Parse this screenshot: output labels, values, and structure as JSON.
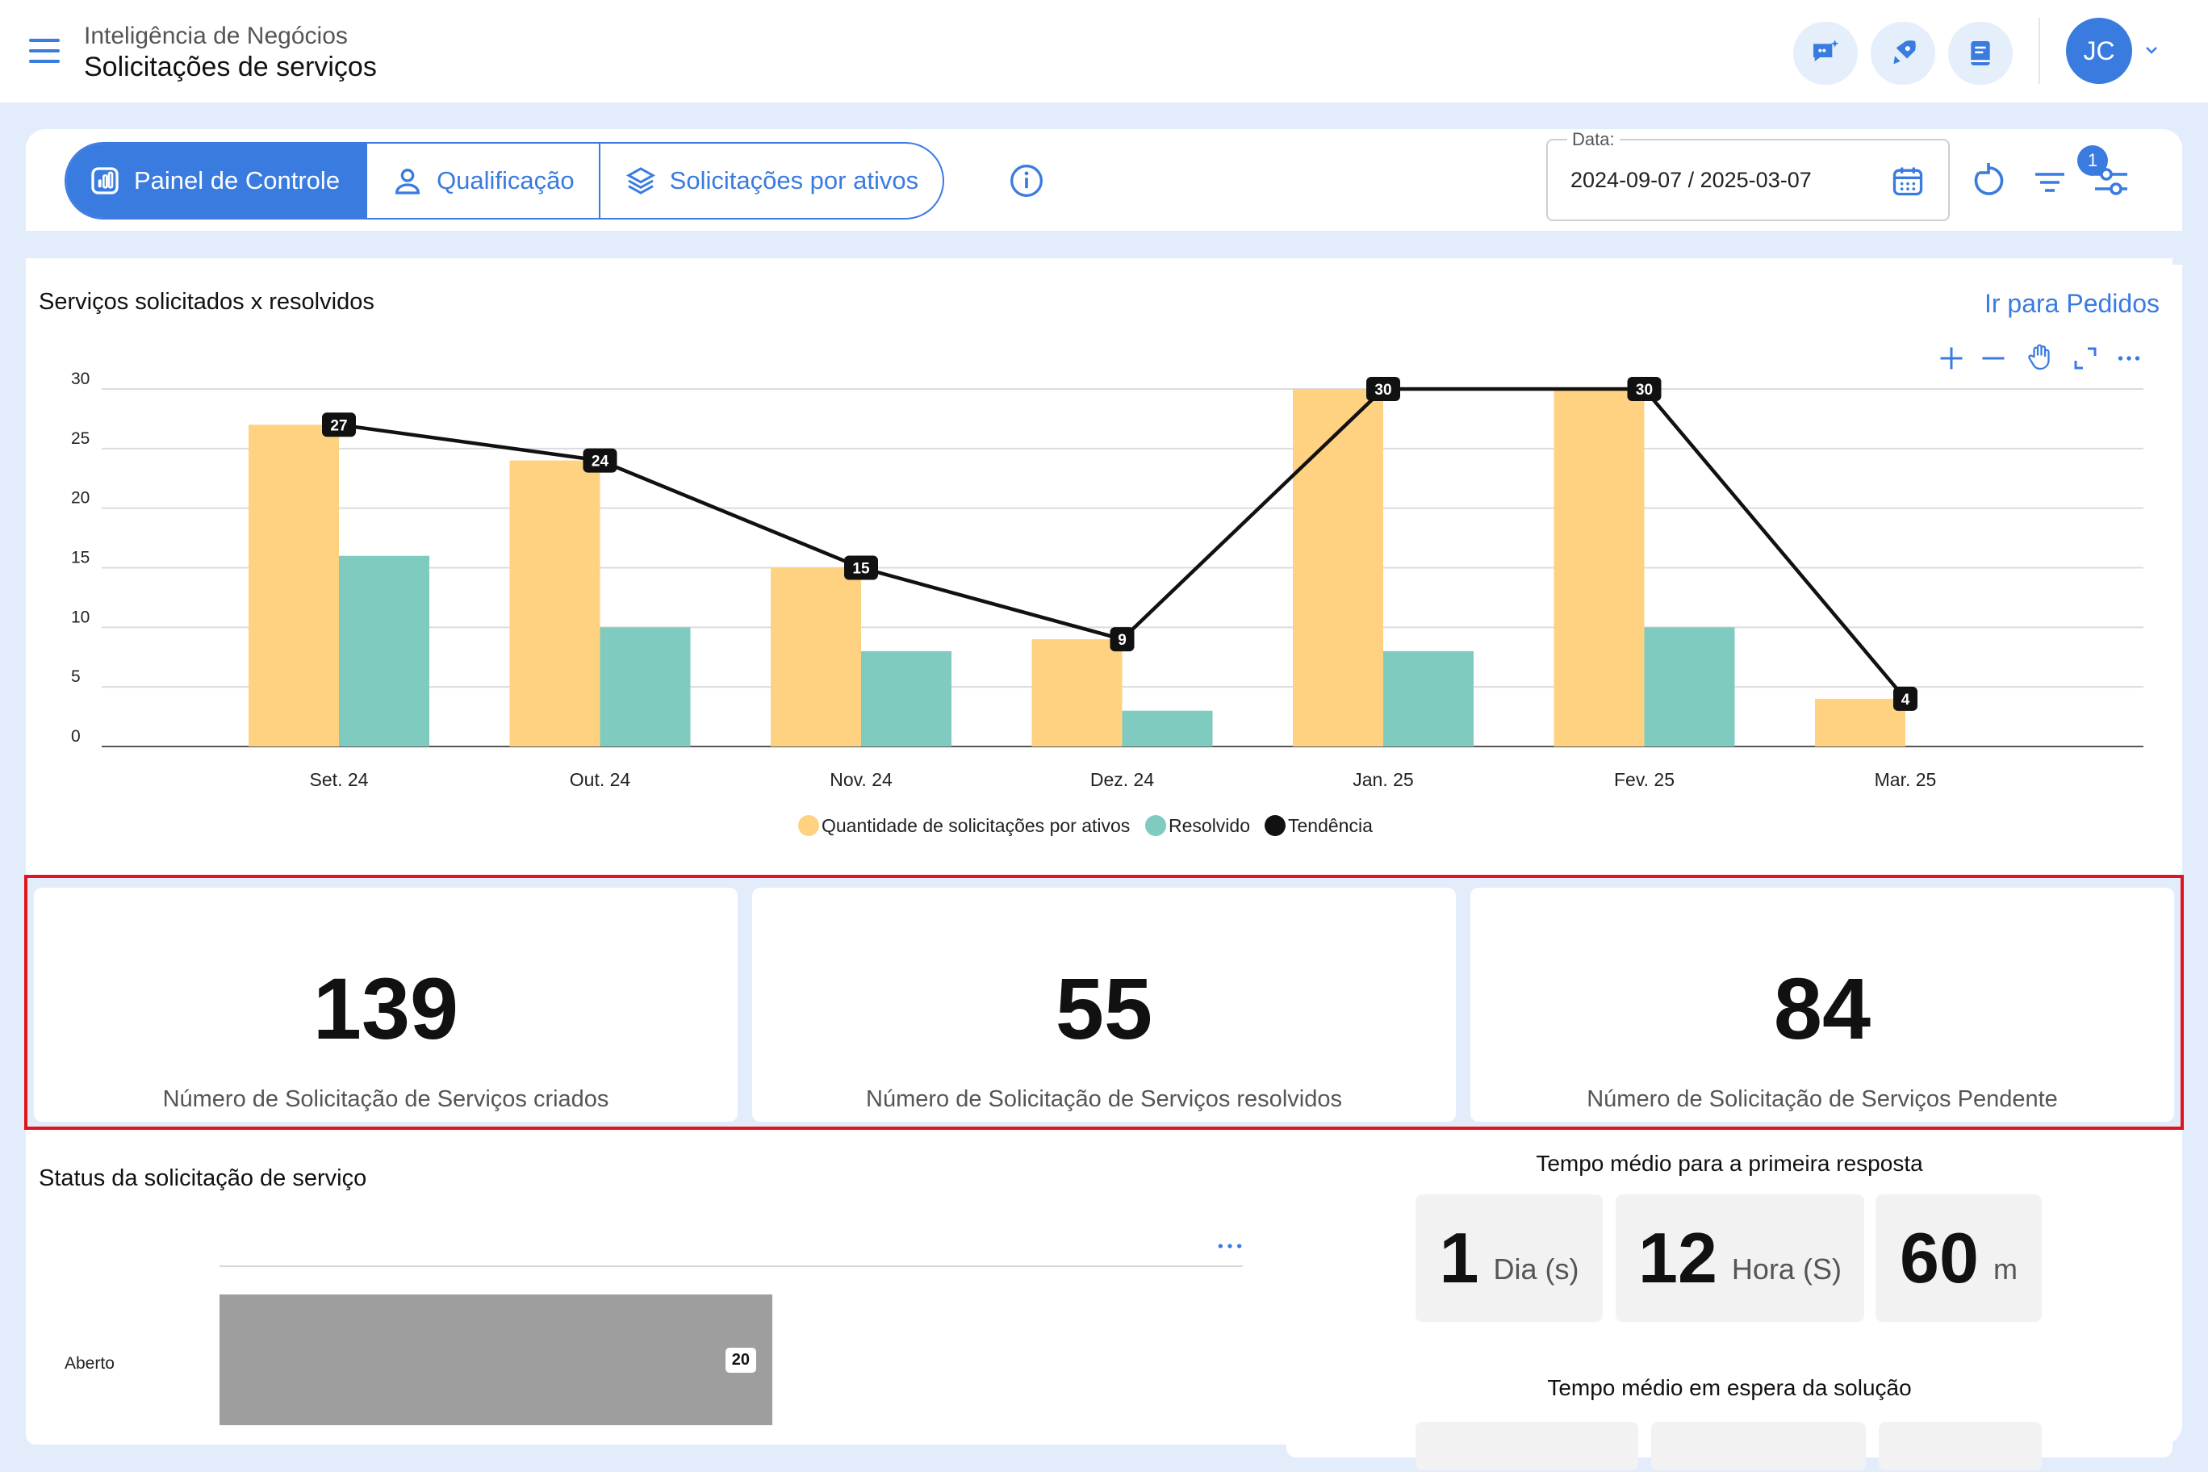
{
  "header": {
    "app_name": "Inteligência de Negócios",
    "page_title": "Solicitações de serviços",
    "avatar_initials": "JC",
    "icons": [
      "chat-sparkle-icon",
      "rocket-icon",
      "book-icon"
    ]
  },
  "toolbar": {
    "tabs": [
      {
        "label": "Painel de Controle",
        "icon": "dashboard-icon",
        "active": true
      },
      {
        "label": "Qualificação",
        "icon": "user-icon",
        "active": false
      },
      {
        "label": "Solicitações por ativos",
        "icon": "layers-icon",
        "active": false
      }
    ],
    "date_label": "Data:",
    "date_value": "2024-09-07 / 2025-03-07",
    "filter_badge": "1"
  },
  "chart_card": {
    "title": "Serviços solicitados x resolvidos",
    "link": "Ir para Pedidos"
  },
  "chart_data": {
    "type": "bar",
    "categories": [
      "Set. 24",
      "Out. 24",
      "Nov. 24",
      "Dez. 24",
      "Jan. 25",
      "Fev. 25",
      "Mar. 25"
    ],
    "series": [
      {
        "name": "Quantidade de solicitações por ativos",
        "type": "bar",
        "color": "#ffd281",
        "values": [
          27,
          24,
          15,
          9,
          30,
          30,
          4
        ]
      },
      {
        "name": "Resolvido",
        "type": "bar",
        "color": "#80cbc0",
        "values": [
          16,
          10,
          8,
          3,
          8,
          10,
          0
        ]
      },
      {
        "name": "Tendência",
        "type": "line",
        "color": "#111111",
        "values": [
          27,
          24,
          15,
          9,
          30,
          30,
          4
        ]
      }
    ],
    "yticks": [
      "0",
      "5",
      "10",
      "15",
      "20",
      "25",
      "30"
    ],
    "ylim": [
      0,
      30
    ],
    "grid": true,
    "legend": "bottom-center"
  },
  "kpis": [
    {
      "value": "139",
      "label": "Número de Solicitação de Serviços criados"
    },
    {
      "value": "55",
      "label": "Número de Solicitação de Serviços resolvidos"
    },
    {
      "value": "84",
      "label": "Número de Solicitação de Serviços Pendente"
    }
  ],
  "status_card": {
    "title": "Status da solicitação de serviço",
    "category": "Aberto",
    "value": 20,
    "value_label": "20",
    "bar_color": "#9e9e9e"
  },
  "first_response": {
    "title": "Tempo médio para a primeira resposta",
    "days": "1",
    "days_unit": "Dia (s)",
    "hours": "12",
    "hours_unit": "Hora (S)",
    "minutes": "60",
    "minutes_unit": "m"
  },
  "solution_wait": {
    "title": "Tempo médio em espera da solução"
  }
}
